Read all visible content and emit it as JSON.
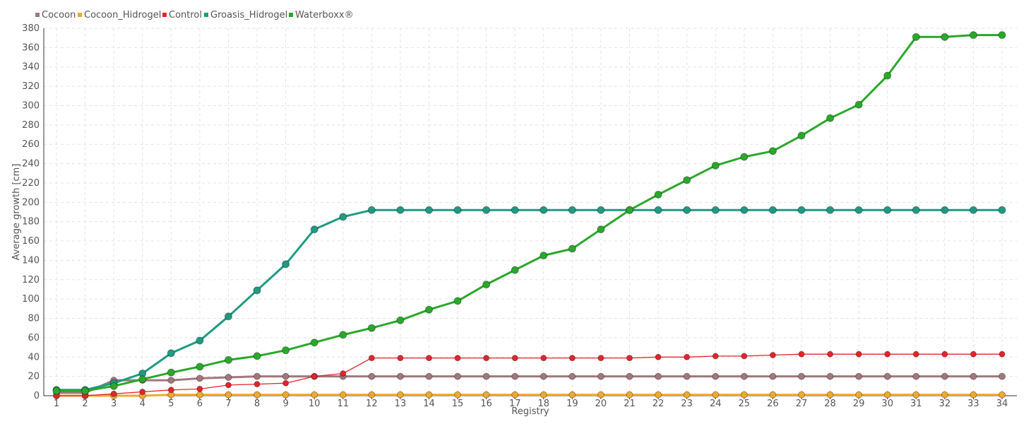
{
  "chart_data": {
    "type": "line",
    "xlabel": "Registry",
    "ylabel": "Average growth [cm]",
    "ylim": [
      0,
      380
    ],
    "yticks": [
      0,
      20,
      40,
      60,
      80,
      100,
      120,
      140,
      160,
      180,
      200,
      220,
      240,
      260,
      280,
      300,
      320,
      340,
      360,
      380
    ],
    "x": [
      1,
      2,
      3,
      4,
      5,
      6,
      7,
      8,
      9,
      10,
      11,
      12,
      13,
      14,
      15,
      16,
      17,
      18,
      19,
      20,
      21,
      22,
      23,
      24,
      25,
      26,
      27,
      28,
      29,
      30,
      31,
      32,
      33,
      34
    ],
    "grid": true,
    "legend_position": "top-left",
    "series": [
      {
        "name": "Cocoon",
        "color": "#a0787e",
        "values": [
          3,
          3,
          16,
          16,
          16,
          18,
          19,
          20,
          20,
          20,
          20,
          20,
          20,
          20,
          20,
          20,
          20,
          20,
          20,
          20,
          20,
          20,
          20,
          20,
          20,
          20,
          20,
          20,
          20,
          20,
          20,
          20,
          20,
          20
        ]
      },
      {
        "name": "Cocoon_Hidrogel",
        "color": "#f0a830",
        "values": [
          0,
          0,
          0,
          0,
          1,
          1,
          1,
          1,
          1,
          1,
          1,
          1,
          1,
          1,
          1,
          1,
          1,
          1,
          1,
          1,
          1,
          1,
          1,
          1,
          1,
          1,
          1,
          1,
          1,
          1,
          1,
          1,
          1,
          1
        ]
      },
      {
        "name": "Control",
        "color": "#e3242b",
        "values": [
          0,
          0,
          2,
          4,
          6,
          7,
          11,
          12,
          13,
          20,
          23,
          39,
          39,
          39,
          39,
          39,
          39,
          39,
          39,
          39,
          39,
          40,
          40,
          41,
          41,
          42,
          43,
          43,
          43,
          43,
          43,
          43,
          43,
          43
        ]
      },
      {
        "name": "Groasis_Hidrogel",
        "color": "#1f9a82",
        "values": [
          6,
          6,
          13,
          23,
          44,
          57,
          82,
          109,
          136,
          172,
          185,
          192,
          192,
          192,
          192,
          192,
          192,
          192,
          192,
          192,
          192,
          192,
          192,
          192,
          192,
          192,
          192,
          192,
          192,
          192,
          192,
          192,
          192,
          192
        ]
      },
      {
        "name": "Waterboxx®",
        "color": "#2aa82a",
        "values": [
          5,
          5,
          10,
          17,
          24,
          30,
          37,
          41,
          47,
          55,
          63,
          70,
          78,
          89,
          98,
          115,
          130,
          145,
          152,
          172,
          192,
          208,
          223,
          238,
          247,
          253,
          269,
          287,
          301,
          331,
          371,
          371,
          373,
          373
        ]
      }
    ]
  }
}
